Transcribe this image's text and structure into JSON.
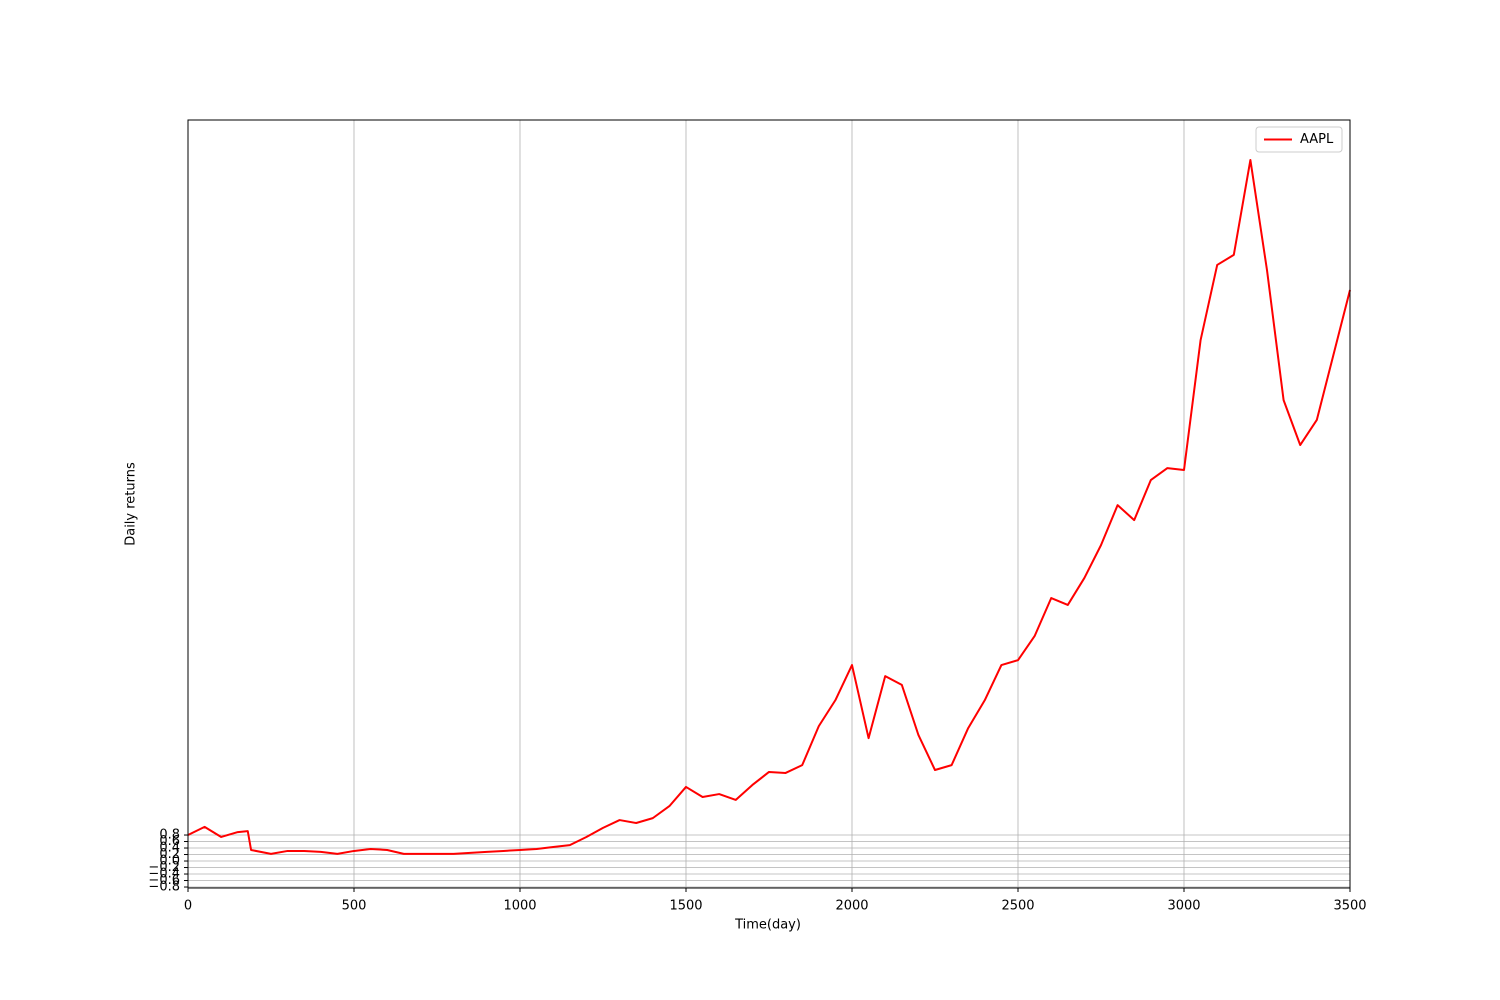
{
  "chart_data": {
    "type": "line",
    "xlabel": "Time(day)",
    "ylabel": "Daily returns",
    "x": [
      0,
      50,
      100,
      150,
      180,
      190,
      250,
      300,
      350,
      400,
      450,
      500,
      550,
      600,
      650,
      700,
      750,
      800,
      850,
      900,
      950,
      1000,
      1050,
      1100,
      1150,
      1200,
      1250,
      1300,
      1350,
      1400,
      1450,
      1500,
      1550,
      1600,
      1650,
      1700,
      1750,
      1800,
      1850,
      1900,
      1950,
      2000,
      2050,
      2100,
      2150,
      2200,
      2250,
      2300,
      2350,
      2400,
      2450,
      2500,
      2550,
      2600,
      2650,
      2700,
      2750,
      2800,
      2850,
      2900,
      2950,
      3000,
      3050,
      3100,
      3150,
      3200,
      3250,
      3300,
      3350,
      3400,
      3450,
      3500
    ],
    "series": [
      {
        "name": "AAPL",
        "color": "#ff0000",
        "values": [
          0.8,
          1.05,
          0.74,
          0.89,
          0.92,
          0.34,
          0.22,
          0.31,
          0.31,
          0.28,
          0.22,
          0.31,
          0.37,
          0.34,
          0.22,
          0.22,
          0.22,
          0.22,
          0.25,
          0.28,
          0.31,
          0.34,
          0.37,
          0.43,
          0.49,
          0.74,
          1.02,
          1.26,
          1.17,
          1.32,
          1.69,
          2.28,
          1.97,
          2.06,
          1.88,
          2.34,
          2.74,
          2.71,
          2.95,
          4.15,
          4.95,
          6.03,
          3.78,
          5.69,
          5.42,
          3.88,
          2.8,
          2.95,
          4.09,
          4.95,
          6.03,
          6.18,
          6.92,
          8.09,
          7.88,
          8.71,
          9.72,
          10.95,
          10.49,
          11.72,
          12.09,
          12.03,
          16.03,
          18.34,
          18.65,
          21.57,
          18.18,
          14.18,
          12.8,
          13.57,
          15.57,
          17.57
        ]
      }
    ],
    "xlim": [
      0,
      3500
    ],
    "xticks": [
      0,
      500,
      1000,
      1500,
      2000,
      2500,
      3000,
      3500
    ],
    "ylim": [
      -0.83,
      22.8
    ],
    "yticks": [
      {
        "value": -0.8,
        "label": "−0.8"
      },
      {
        "value": -0.6,
        "label": "−0.6"
      },
      {
        "value": -0.4,
        "label": "−0.4"
      },
      {
        "value": -0.2,
        "label": "−0.2"
      },
      {
        "value": 0,
        "label": "0.0"
      },
      0.2,
      0.4,
      0.6,
      0.8
    ],
    "grid": true,
    "legend": "upper right"
  }
}
